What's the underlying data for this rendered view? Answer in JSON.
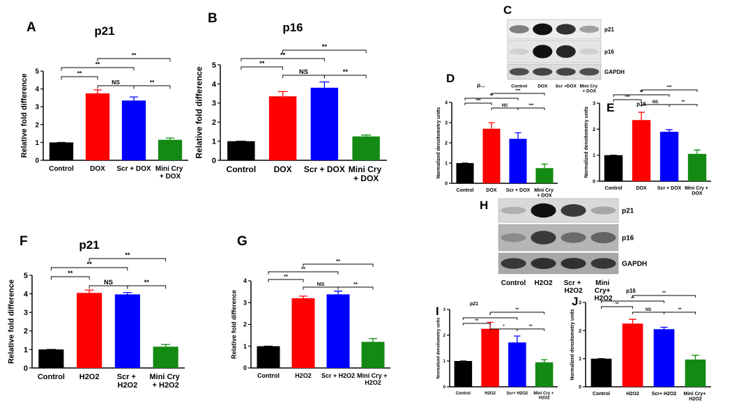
{
  "chart_data": [
    {
      "type": "bar",
      "panel": "A",
      "title": "p21",
      "ylabel": "Relative fold difference",
      "categories": [
        "Control",
        "DOX",
        "Scr + DOX",
        "Mini Cry + DOX"
      ],
      "values": [
        1,
        3.75,
        3.35,
        1.15
      ],
      "errors": [
        0,
        0.2,
        0.2,
        0.1
      ],
      "colors": [
        "#000000",
        "#ff0000",
        "#0000ff",
        "#138a13"
      ],
      "ylim": [
        0,
        5
      ],
      "yticks": [
        0,
        1,
        2,
        3,
        4,
        5
      ],
      "brackets": [
        {
          "span": [
            1,
            2
          ],
          "label": "NS"
        },
        {
          "span": [
            2,
            3
          ],
          "label": "**"
        },
        {
          "span": [
            0,
            1
          ],
          "label": "**"
        },
        {
          "span": [
            0,
            2
          ],
          "label": "**"
        },
        {
          "span": [
            1,
            3
          ],
          "label": "**"
        }
      ]
    },
    {
      "type": "bar",
      "panel": "B",
      "title": "p16",
      "ylabel": "Relative fold difference",
      "categories": [
        "Control",
        "DOX",
        "Scr + DOX",
        "Mini Cry + DOX"
      ],
      "values": [
        1,
        3.35,
        3.8,
        1.25
      ],
      "errors": [
        0,
        0.25,
        0.3,
        0.07
      ],
      "colors": [
        "#000000",
        "#ff0000",
        "#0000ff",
        "#138a13"
      ],
      "ylim": [
        0,
        5
      ],
      "yticks": [
        0,
        1,
        2,
        3,
        4,
        5
      ],
      "brackets": [
        {
          "span": [
            1,
            2
          ],
          "label": "NS"
        },
        {
          "span": [
            2,
            3
          ],
          "label": "**"
        },
        {
          "span": [
            0,
            1
          ],
          "label": "**"
        },
        {
          "span": [
            0,
            2
          ],
          "label": "**"
        },
        {
          "span": [
            1,
            3
          ],
          "label": "**"
        }
      ]
    },
    {
      "type": "bar",
      "panel": "D",
      "title": "p...",
      "ylabel": "Normalized densitometry units",
      "categories": [
        "Control",
        "DOX",
        "Scr + DOX",
        "Mini Cry + DOX"
      ],
      "values": [
        1,
        2.7,
        2.2,
        0.75
      ],
      "errors": [
        0,
        0.3,
        0.3,
        0.2
      ],
      "colors": [
        "#000000",
        "#ff0000",
        "#0000ff",
        "#138a13"
      ],
      "ylim": [
        0,
        4
      ],
      "yticks": [
        0,
        1,
        2,
        3,
        4
      ],
      "brackets": [
        {
          "span": [
            1,
            2
          ],
          "label": "NS"
        },
        {
          "span": [
            2,
            3
          ],
          "label": "***"
        },
        {
          "span": [
            0,
            1
          ],
          "label": "***"
        },
        {
          "span": [
            0,
            2
          ],
          "label": "**"
        },
        {
          "span": [
            1,
            3
          ],
          "label": "***"
        }
      ]
    },
    {
      "type": "bar",
      "panel": "E",
      "title": "p16",
      "ylabel": "Normalized densitometry units",
      "categories": [
        "Control",
        "DOX",
        "Scr + DOX",
        "Mini Cry + DOX"
      ],
      "values": [
        1,
        2.35,
        1.9,
        1.05
      ],
      "errors": [
        0,
        0.3,
        0.08,
        0.15
      ],
      "colors": [
        "#000000",
        "#ff0000",
        "#0000ff",
        "#138a13"
      ],
      "ylim": [
        0,
        3
      ],
      "yticks": [
        0,
        1,
        2,
        3
      ],
      "brackets": [
        {
          "span": [
            1,
            2
          ],
          "label": "NS"
        },
        {
          "span": [
            2,
            3
          ],
          "label": "**"
        },
        {
          "span": [
            0,
            1
          ],
          "label": "***"
        },
        {
          "span": [
            0,
            2
          ],
          "label": "**"
        },
        {
          "span": [
            1,
            3
          ],
          "label": "***"
        }
      ]
    },
    {
      "type": "bar",
      "panel": "F",
      "title": "p21",
      "ylabel": "Relative fold difference",
      "categories": [
        "Control",
        "H2O2",
        "Scr + H2O2",
        "Mini Cry + H2O2"
      ],
      "values": [
        1,
        4.05,
        3.97,
        1.15
      ],
      "errors": [
        0,
        0.15,
        0.1,
        0.12
      ],
      "colors": [
        "#000000",
        "#ff0000",
        "#0000ff",
        "#138a13"
      ],
      "ylim": [
        0,
        5
      ],
      "yticks": [
        0,
        1,
        2,
        3,
        4,
        5
      ],
      "brackets": [
        {
          "span": [
            1,
            2
          ],
          "label": "NS"
        },
        {
          "span": [
            2,
            3
          ],
          "label": "**"
        },
        {
          "span": [
            0,
            1
          ],
          "label": "**"
        },
        {
          "span": [
            0,
            2
          ],
          "label": "**"
        },
        {
          "span": [
            1,
            3
          ],
          "label": "**"
        }
      ]
    },
    {
      "type": "bar",
      "panel": "G",
      "ylabel": "Relative fold difference",
      "categories": [
        "Control",
        "H2O2",
        "Scr + H2O2",
        "Mini Cry + H2O2"
      ],
      "values": [
        1,
        3.2,
        3.38,
        1.2
      ],
      "errors": [
        0,
        0.1,
        0.15,
        0.15
      ],
      "colors": [
        "#000000",
        "#ff0000",
        "#0000ff",
        "#138a13"
      ],
      "ylim": [
        0,
        4
      ],
      "yticks": [
        0,
        1,
        2,
        3,
        4
      ],
      "brackets": [
        {
          "span": [
            1,
            2
          ],
          "label": "NS"
        },
        {
          "span": [
            2,
            3
          ],
          "label": "**"
        },
        {
          "span": [
            0,
            1
          ],
          "label": "**"
        },
        {
          "span": [
            0,
            2
          ],
          "label": "**"
        },
        {
          "span": [
            1,
            3
          ],
          "label": "**"
        }
      ]
    },
    {
      "type": "bar",
      "panel": "I",
      "title": "p21",
      "ylabel": "Normalized densitometry units",
      "categories": [
        "Control",
        "H2O2",
        "Scr+ H2O2",
        "Mini Cry + H2O2"
      ],
      "values": [
        1,
        2.25,
        1.72,
        0.95
      ],
      "errors": [
        0,
        0.25,
        0.25,
        0.1
      ],
      "colors": [
        "#000000",
        "#ff0000",
        "#0000ff",
        "#138a13"
      ],
      "ylim": [
        0,
        3
      ],
      "yticks": [
        0,
        1,
        2,
        3
      ],
      "brackets": [
        {
          "span": [
            1,
            2
          ],
          "label": "*"
        },
        {
          "span": [
            2,
            3
          ],
          "label": "**"
        },
        {
          "span": [
            0,
            1
          ],
          "label": "**"
        },
        {
          "span": [
            0,
            2
          ],
          "label": "*"
        },
        {
          "span": [
            1,
            3
          ],
          "label": "**"
        }
      ]
    },
    {
      "type": "bar",
      "panel": "J",
      "title": "p16",
      "ylabel": "Normalized densitometry units",
      "categories": [
        "Control",
        "H2O2",
        "Scr+ H2O2",
        "Mini Cry+ H2O2"
      ],
      "values": [
        1,
        2.25,
        2.05,
        0.97
      ],
      "errors": [
        0,
        0.15,
        0.07,
        0.15
      ],
      "colors": [
        "#000000",
        "#ff0000",
        "#0000ff",
        "#138a13"
      ],
      "ylim": [
        0,
        3
      ],
      "yticks": [
        0,
        1,
        2,
        3
      ],
      "brackets": [
        {
          "span": [
            1,
            2
          ],
          "label": "NS"
        },
        {
          "span": [
            2,
            3
          ],
          "label": "**"
        },
        {
          "span": [
            0,
            1
          ],
          "label": "**"
        },
        {
          "span": [
            0,
            2
          ],
          "label": "**"
        },
        {
          "span": [
            1,
            3
          ],
          "label": "**"
        }
      ]
    }
  ],
  "blots": [
    {
      "panel": "C",
      "rows": [
        "p21",
        "p16",
        "GAPDH"
      ],
      "lanes": [
        "Control",
        "DOX",
        "Scr +DOX",
        "Mini Cry + DOX"
      ]
    },
    {
      "panel": "H",
      "rows": [
        "p21",
        "p16",
        "GAPDH"
      ],
      "lanes": [
        "Control",
        "H2O2",
        "Scr + H2O2",
        "Mini Cry+ H2O2"
      ]
    }
  ]
}
